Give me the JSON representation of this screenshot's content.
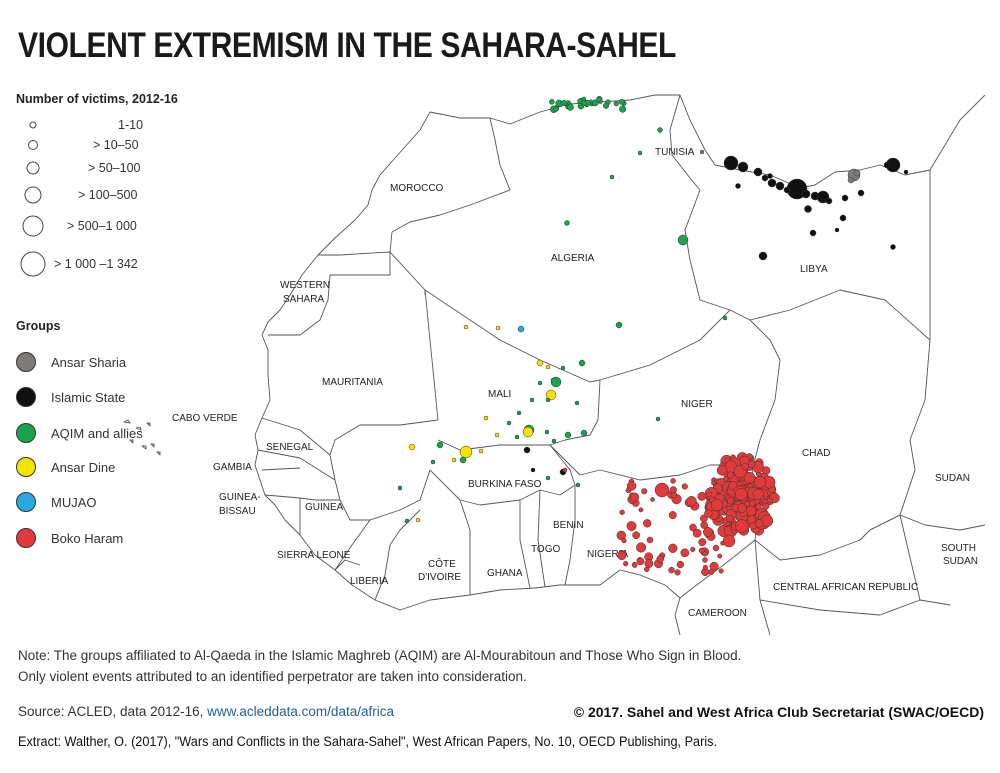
{
  "title": "VIOLENT EXTREMISM IN THE SAHARA-SAHEL",
  "size_legend": {
    "title": "Number of victims, 2012-16",
    "items": [
      {
        "label": "1-10",
        "r": 3
      },
      {
        "label": "> 10–50",
        "r": 4.5
      },
      {
        "label": "> 50–100",
        "r": 6
      },
      {
        "label": "> 100–500",
        "r": 8
      },
      {
        "label": "> 500–1 000",
        "r": 10
      },
      {
        "label": "> 1 000 –1 342",
        "r": 12
      }
    ]
  },
  "groups_legend": {
    "title": "Groups",
    "items": [
      {
        "name": "Ansar Sharia",
        "color": "#7f7a78"
      },
      {
        "name": "Islamic State",
        "color": "#111111"
      },
      {
        "name": "AQIM and allies",
        "color": "#1aa34a"
      },
      {
        "name": "Ansar Dine",
        "color": "#f2e300"
      },
      {
        "name": "MUJAO",
        "color": "#29a8e0"
      },
      {
        "name": "Boko Haram",
        "color": "#e03a3a"
      }
    ]
  },
  "countries": {
    "morocco": "MOROCCO",
    "tunisia": "TUNISIA",
    "algeria": "ALGERIA",
    "libya": "LIBYA",
    "western_sahara_1": "WESTERN",
    "western_sahara_2": "SAHARA",
    "mauritania": "MAURITANIA",
    "mali": "MALI",
    "niger": "NIGER",
    "chad": "CHAD",
    "sudan": "SUDAN",
    "cabo_verde": "CABO VERDE",
    "senegal": "SENEGAL",
    "gambia": "GAMBIA",
    "guinea_bissau_1": "GUINEA-",
    "guinea_bissau_2": "BISSAU",
    "guinea": "GUINEA",
    "burkina_faso": "BURKINA FASO",
    "benin": "BENIN",
    "nigeria": "NIGERIA",
    "togo": "TOGO",
    "sierra_leone": "SIERRA LEONE",
    "liberia": "LIBERIA",
    "cote_divoire_1": "CÔTE",
    "cote_divoire_2": "D'IVOIRE",
    "ghana": "GHANA",
    "cameroon": "CAMEROON",
    "car": "CENTRAL AFRICAN REPUBLIC",
    "south_sudan_1": "SOUTH",
    "south_sudan_2": "SUDAN"
  },
  "note": {
    "line1": "Note: The groups affiliated to Al-Qaeda in the Islamic Maghreb (AQIM) are Al-Mourabitoun and Those Who Sign in Blood.",
    "line2": "Only violent events attributed to an identified perpetrator are taken into consideration."
  },
  "source": {
    "prefix": "Source: ACLED, data 2012-16, ",
    "link": "www.acleddata.com/data/africa"
  },
  "copyright": "© 2017. Sahel and West Africa Club Secretariat (SWAC/OECD)",
  "extract": "Extract: Walther, O. (2017), \"Wars and Conflicts in the Sahara-Sahel\", West African Papers, No. 10, OECD Publishing, Paris."
}
